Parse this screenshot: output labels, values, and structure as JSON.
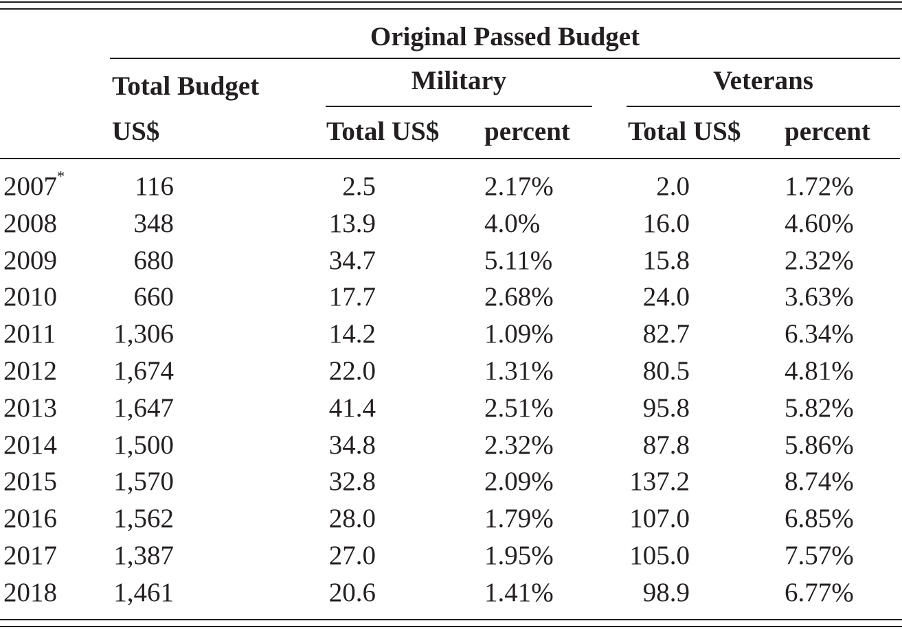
{
  "header": {
    "group_title": "Original Passed Budget",
    "total_budget_label": "Total Budget",
    "total_budget_unit": "US$",
    "military_label": "Military",
    "veterans_label": "Veterans",
    "military_total_label": "Total US$",
    "military_percent_label": "percent",
    "veterans_total_label": "Total US$",
    "veterans_percent_label": "percent"
  },
  "rows": [
    {
      "year": "2007",
      "note": "*",
      "total": "116",
      "mil_total": "2.5",
      "mil_pct": "2.17%",
      "vet_total": "2.0",
      "vet_pct": "1.72%"
    },
    {
      "year": "2008",
      "note": "",
      "total": "348",
      "mil_total": "13.9",
      "mil_pct": "4.0%",
      "vet_total": "16.0",
      "vet_pct": "4.60%"
    },
    {
      "year": "2009",
      "note": "",
      "total": "680",
      "mil_total": "34.7",
      "mil_pct": "5.11%",
      "vet_total": "15.8",
      "vet_pct": "2.32%"
    },
    {
      "year": "2010",
      "note": "",
      "total": "660",
      "mil_total": "17.7",
      "mil_pct": "2.68%",
      "vet_total": "24.0",
      "vet_pct": "3.63%"
    },
    {
      "year": "2011",
      "note": "",
      "total": "1,306",
      "mil_total": "14.2",
      "mil_pct": "1.09%",
      "vet_total": "82.7",
      "vet_pct": "6.34%"
    },
    {
      "year": "2012",
      "note": "",
      "total": "1,674",
      "mil_total": "22.0",
      "mil_pct": "1.31%",
      "vet_total": "80.5",
      "vet_pct": "4.81%"
    },
    {
      "year": "2013",
      "note": "",
      "total": "1,647",
      "mil_total": "41.4",
      "mil_pct": "2.51%",
      "vet_total": "95.8",
      "vet_pct": "5.82%"
    },
    {
      "year": "2014",
      "note": "",
      "total": "1,500",
      "mil_total": "34.8",
      "mil_pct": "2.32%",
      "vet_total": "87.8",
      "vet_pct": "5.86%"
    },
    {
      "year": "2015",
      "note": "",
      "total": "1,570",
      "mil_total": "32.8",
      "mil_pct": "2.09%",
      "vet_total": "137.2",
      "vet_pct": "8.74%"
    },
    {
      "year": "2016",
      "note": "",
      "total": "1,562",
      "mil_total": "28.0",
      "mil_pct": "1.79%",
      "vet_total": "107.0",
      "vet_pct": "6.85%"
    },
    {
      "year": "2017",
      "note": "",
      "total": "1,387",
      "mil_total": "27.0",
      "mil_pct": "1.95%",
      "vet_total": "105.0",
      "vet_pct": "7.57%"
    },
    {
      "year": "2018",
      "note": "",
      "total": "1,461",
      "mil_total": "20.6",
      "mil_pct": "1.41%",
      "vet_total": "98.9",
      "vet_pct": "6.77%"
    }
  ]
}
